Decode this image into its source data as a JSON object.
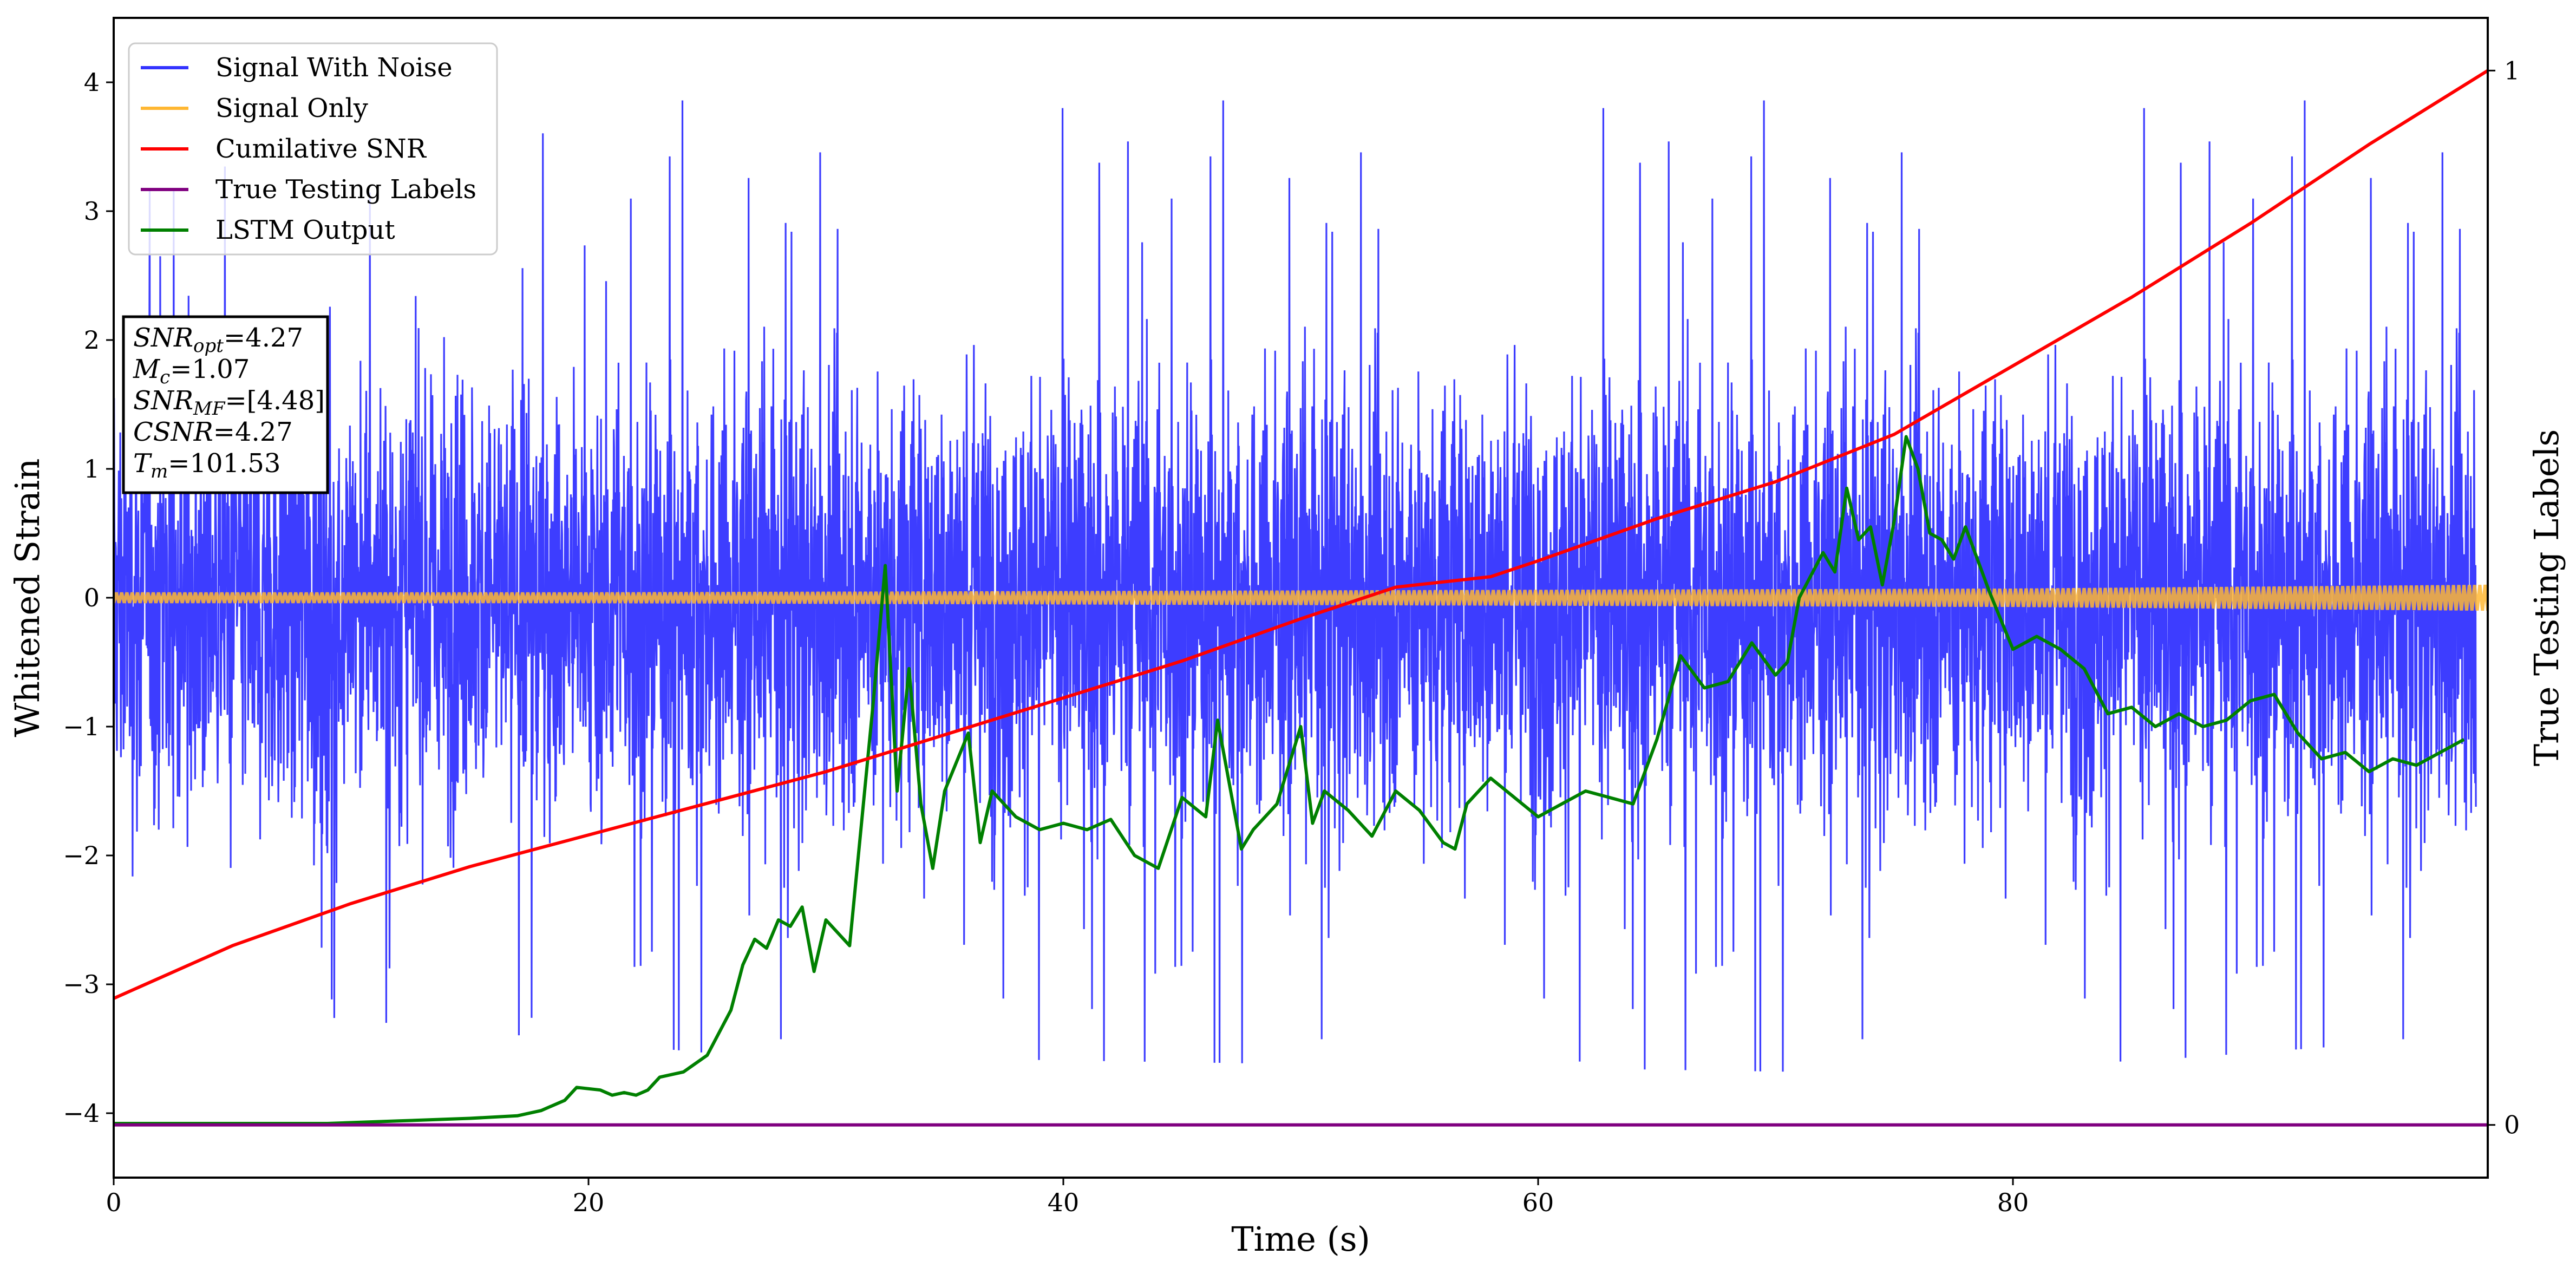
{
  "chart_data": {
    "type": "line",
    "xlabel": "Time (s)",
    "ylabel": "Whitened Strain",
    "y2label": "True Testing Labels",
    "xlim": [
      0,
      100
    ],
    "ylim": [
      -4.5,
      4.5
    ],
    "y2lim": [
      -0.05,
      1.05
    ],
    "xticks": [
      0,
      20,
      40,
      60,
      80
    ],
    "yticks": [
      -4,
      -3,
      -2,
      -1,
      0,
      1,
      2,
      3,
      4
    ],
    "y2ticks": [
      0,
      1
    ],
    "legend_position": "top-left",
    "grid": false,
    "series": [
      {
        "name": "Signal With Noise",
        "axis": "left",
        "color": "#3333ff",
        "description_values": "dense noise approx. within [-3.7, 4.1]",
        "envelope": [
          [
            0,
            3.1
          ],
          [
            19,
            4.1
          ],
          [
            75,
            4.0
          ],
          [
            99.5,
            4.0
          ]
        ],
        "min_envelope": [
          [
            0,
            -3.1
          ],
          [
            26,
            -3.55
          ],
          [
            78,
            -3.7
          ],
          [
            99.5,
            -3.4
          ]
        ]
      },
      {
        "name": "Signal Only",
        "axis": "left",
        "color": "#ffb732",
        "x": [
          0,
          20,
          40,
          60,
          80,
          100
        ],
        "y": [
          0.0,
          0.0,
          0.0,
          0.0,
          0.0,
          0.0
        ],
        "amplitude": [
          0.04,
          0.04,
          0.05,
          0.06,
          0.07,
          0.1
        ]
      },
      {
        "name": "Cumilative SNR",
        "axis": "right",
        "color": "#ff0000",
        "x": [
          0,
          5,
          10,
          15,
          20,
          25,
          30,
          35,
          40,
          45,
          50,
          54,
          58,
          60,
          65,
          70,
          75,
          80,
          85,
          90,
          95,
          100
        ],
        "y": [
          0.12,
          0.17,
          0.21,
          0.245,
          0.275,
          0.305,
          0.335,
          0.37,
          0.405,
          0.44,
          0.48,
          0.51,
          0.52,
          0.535,
          0.575,
          0.61,
          0.655,
          0.72,
          0.785,
          0.855,
          0.93,
          1.0
        ]
      },
      {
        "name": "True Testing Labels",
        "axis": "right",
        "color": "#800080",
        "x": [
          0,
          100
        ],
        "y": [
          0,
          0
        ]
      },
      {
        "name": "LSTM Output",
        "axis": "left",
        "color": "#008000",
        "x": [
          0,
          9,
          12,
          15,
          17,
          18,
          19,
          19.5,
          20.5,
          21,
          21.5,
          22,
          22.5,
          23,
          24,
          25,
          26,
          26.5,
          27,
          27.5,
          28,
          28.5,
          29,
          29.5,
          30,
          31,
          32,
          32.5,
          33,
          33.5,
          34,
          34.5,
          35,
          36,
          36.5,
          37,
          38,
          39,
          40,
          41,
          42,
          43,
          44,
          45,
          46,
          46.5,
          47.5,
          48,
          49,
          50,
          50.5,
          51,
          52,
          53,
          54,
          55,
          56,
          56.5,
          57,
          58,
          59,
          60,
          61,
          62,
          63,
          64,
          65,
          66,
          67,
          68,
          69,
          70,
          70.5,
          71,
          72,
          72.5,
          73,
          73.5,
          74,
          74.5,
          75,
          75.5,
          76,
          76.5,
          77,
          77.5,
          78,
          79,
          80,
          81,
          82,
          83,
          84,
          85,
          86,
          87,
          88,
          89,
          90,
          91,
          92,
          93,
          94,
          95,
          96,
          97,
          98,
          99
        ],
        "y": [
          -4.08,
          -4.08,
          -4.06,
          -4.04,
          -4.02,
          -3.98,
          -3.9,
          -3.8,
          -3.82,
          -3.86,
          -3.84,
          -3.86,
          -3.82,
          -3.72,
          -3.68,
          -3.55,
          -3.2,
          -2.85,
          -2.65,
          -2.72,
          -2.5,
          -2.55,
          -2.4,
          -2.9,
          -2.5,
          -2.7,
          -0.8,
          0.25,
          -1.5,
          -0.55,
          -1.6,
          -2.1,
          -1.5,
          -1.05,
          -1.9,
          -1.5,
          -1.7,
          -1.8,
          -1.75,
          -1.8,
          -1.72,
          -2.0,
          -2.1,
          -1.55,
          -1.7,
          -0.95,
          -1.95,
          -1.8,
          -1.6,
          -1.0,
          -1.75,
          -1.5,
          -1.65,
          -1.85,
          -1.5,
          -1.65,
          -1.9,
          -1.95,
          -1.6,
          -1.4,
          -1.55,
          -1.7,
          -1.6,
          -1.5,
          -1.55,
          -1.6,
          -1.1,
          -0.45,
          -0.7,
          -0.65,
          -0.35,
          -0.6,
          -0.5,
          0.0,
          0.35,
          0.2,
          0.85,
          0.45,
          0.55,
          0.1,
          0.6,
          1.25,
          1.0,
          0.5,
          0.45,
          0.3,
          0.55,
          0.05,
          -0.4,
          -0.3,
          -0.4,
          -0.55,
          -0.9,
          -0.85,
          -1.0,
          -0.9,
          -1.0,
          -0.95,
          -0.8,
          -0.75,
          -1.05,
          -1.25,
          -1.2,
          -1.35,
          -1.25,
          -1.3,
          -1.2,
          -1.1
        ]
      }
    ],
    "stats_box": {
      "lines": [
        {
          "main": "SNR",
          "sub": "opt",
          "value": "=4.27"
        },
        {
          "main": "M",
          "sub": "c",
          "value": "=1.07"
        },
        {
          "main": "SNR",
          "sub": "MF",
          "value": "=[4.48]"
        },
        {
          "main": "CSNR",
          "sub": "",
          "value": "=4.27"
        },
        {
          "main": "T",
          "sub": "m",
          "value": "=101.53"
        }
      ]
    }
  }
}
